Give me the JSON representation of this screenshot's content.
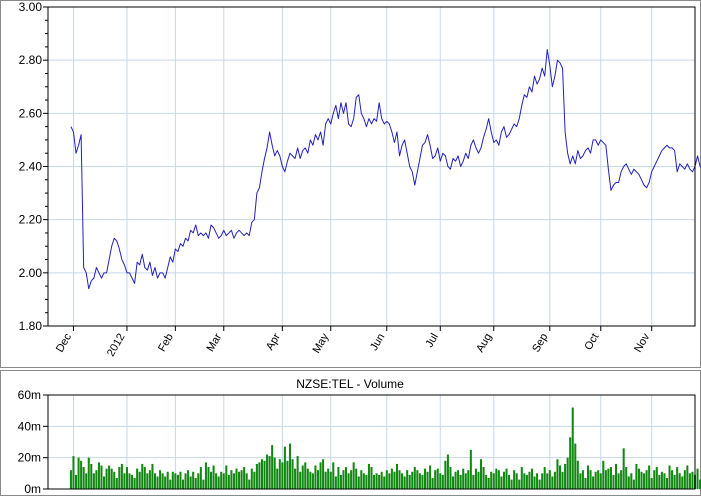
{
  "chart_data": [
    {
      "type": "line",
      "title": "",
      "xlabel": "",
      "ylabel": "",
      "ylim": [
        1.8,
        3.0
      ],
      "grid": true,
      "yticks": [
        "3.00",
        "2.80",
        "2.60",
        "2.40",
        "2.20",
        "2.00",
        "1.80"
      ],
      "ytick_values": [
        3.0,
        2.8,
        2.6,
        2.4,
        2.2,
        2.0,
        1.8
      ],
      "xtick_labels": [
        "Dec",
        "2012",
        "Feb",
        "Mar",
        "Apr",
        "May",
        "Jun",
        "Jul",
        "Aug",
        "Sep",
        "Oct",
        "Nov"
      ],
      "xtick_positions": [
        1,
        22,
        41,
        60,
        83,
        102,
        124,
        145,
        166,
        188,
        208,
        228
      ],
      "x_range": [
        -9,
        245
      ],
      "series": [
        {
          "color": "#2222bb",
          "values": [
            2.55,
            2.53,
            2.45,
            2.48,
            2.52,
            2.02,
            2.0,
            1.94,
            1.97,
            1.98,
            2.02,
            2.0,
            1.98,
            2.0,
            2.0,
            2.05,
            2.1,
            2.13,
            2.12,
            2.09,
            2.05,
            2.03,
            2.0,
            2.0,
            1.98,
            1.96,
            2.04,
            2.03,
            2.07,
            2.02,
            2.01,
            2.04,
            1.99,
            2.02,
            1.98,
            2.0,
            2.0,
            1.98,
            2.02,
            2.06,
            2.04,
            2.09,
            2.08,
            2.11,
            2.1,
            2.13,
            2.12,
            2.16,
            2.15,
            2.18,
            2.14,
            2.15,
            2.14,
            2.15,
            2.13,
            2.18,
            2.17,
            2.15,
            2.13,
            2.14,
            2.16,
            2.14,
            2.15,
            2.16,
            2.13,
            2.15,
            2.16,
            2.15,
            2.14,
            2.15,
            2.14,
            2.19,
            2.2,
            2.3,
            2.32,
            2.38,
            2.43,
            2.47,
            2.53,
            2.48,
            2.44,
            2.46,
            2.44,
            2.4,
            2.38,
            2.42,
            2.45,
            2.44,
            2.43,
            2.47,
            2.43,
            2.46,
            2.47,
            2.45,
            2.5,
            2.48,
            2.52,
            2.5,
            2.53,
            2.48,
            2.56,
            2.58,
            2.56,
            2.6,
            2.63,
            2.58,
            2.64,
            2.6,
            2.64,
            2.56,
            2.55,
            2.58,
            2.66,
            2.67,
            2.6,
            2.58,
            2.55,
            2.58,
            2.56,
            2.58,
            2.57,
            2.64,
            2.58,
            2.56,
            2.57,
            2.56,
            2.53,
            2.49,
            2.53,
            2.44,
            2.48,
            2.5,
            2.45,
            2.4,
            2.38,
            2.33,
            2.38,
            2.43,
            2.48,
            2.49,
            2.52,
            2.48,
            2.43,
            2.44,
            2.47,
            2.42,
            2.45,
            2.44,
            2.4,
            2.39,
            2.43,
            2.42,
            2.44,
            2.4,
            2.42,
            2.45,
            2.43,
            2.48,
            2.5,
            2.47,
            2.45,
            2.47,
            2.51,
            2.54,
            2.58,
            2.53,
            2.49,
            2.5,
            2.48,
            2.53,
            2.55,
            2.51,
            2.52,
            2.54,
            2.56,
            2.55,
            2.58,
            2.63,
            2.67,
            2.66,
            2.7,
            2.68,
            2.74,
            2.71,
            2.73,
            2.77,
            2.74,
            2.84,
            2.78,
            2.7,
            2.74,
            2.8,
            2.79,
            2.77,
            2.53,
            2.45,
            2.41,
            2.44,
            2.41,
            2.46,
            2.43,
            2.44,
            2.46,
            2.47,
            2.45,
            2.5,
            2.5,
            2.48,
            2.5,
            2.49,
            2.48,
            2.39,
            2.31,
            2.33,
            2.34,
            2.34,
            2.38,
            2.4,
            2.41,
            2.39,
            2.37,
            2.39,
            2.38,
            2.37,
            2.35,
            2.33,
            2.32,
            2.34,
            2.38,
            2.4,
            2.42,
            2.44,
            2.46,
            2.47,
            2.48,
            2.47,
            2.47,
            2.46,
            2.38,
            2.41,
            2.4,
            2.39,
            2.41,
            2.39,
            2.38,
            2.4,
            2.44,
            2.4,
            2.39,
            2.38,
            2.39
          ]
        }
      ]
    },
    {
      "type": "bar",
      "title": "NZSE:TEL - Volume",
      "xlabel": "",
      "ylabel": "",
      "ylim": [
        0,
        60
      ],
      "grid": true,
      "yticks": [
        "60m",
        "40m",
        "20m",
        "0m"
      ],
      "ytick_values": [
        60,
        40,
        20,
        0
      ],
      "x_range": [
        -9,
        245
      ],
      "series": [
        {
          "color": "#118811",
          "values": [
            12,
            21,
            9,
            20,
            18,
            14,
            10,
            20,
            16,
            10,
            12,
            17,
            15,
            8,
            13,
            15,
            13,
            11,
            7,
            14,
            16,
            10,
            14,
            10,
            9,
            7,
            13,
            11,
            16,
            14,
            10,
            12,
            16,
            10,
            8,
            12,
            10,
            8,
            11,
            6,
            11,
            10,
            9,
            11,
            6,
            10,
            12,
            8,
            11,
            7,
            10,
            14,
            6,
            17,
            14,
            11,
            15,
            10,
            8,
            11,
            10,
            15,
            9,
            12,
            10,
            13,
            11,
            12,
            14,
            10,
            6,
            13,
            11,
            16,
            17,
            19,
            18,
            22,
            21,
            28,
            20,
            13,
            19,
            17,
            27,
            18,
            29,
            19,
            13,
            21,
            11,
            15,
            17,
            13,
            11,
            10,
            15,
            12,
            17,
            19,
            11,
            13,
            11,
            17,
            8,
            14,
            9,
            12,
            14,
            10,
            12,
            17,
            13,
            8,
            12,
            10,
            9,
            16,
            14,
            9,
            10,
            9,
            11,
            8,
            12,
            10,
            13,
            11,
            16,
            12,
            10,
            8,
            12,
            9,
            11,
            14,
            12,
            10,
            9,
            13,
            11,
            15,
            7,
            12,
            13,
            10,
            9,
            18,
            22,
            14,
            8,
            11,
            12,
            9,
            13,
            10,
            12,
            25,
            9,
            13,
            11,
            19,
            14,
            9,
            7,
            11,
            10,
            13,
            12,
            8,
            11,
            13,
            9,
            6,
            12,
            10,
            6,
            14,
            10,
            9,
            11,
            13,
            8,
            10,
            6,
            10,
            14,
            10,
            12,
            8,
            11,
            19,
            15,
            11,
            16,
            20,
            33,
            52,
            29,
            18,
            10,
            12,
            7,
            15,
            12,
            8,
            11,
            12,
            10,
            18,
            12,
            13,
            14,
            9,
            16,
            10,
            12,
            26,
            14,
            8,
            10,
            6,
            16,
            13,
            11,
            10,
            12,
            15,
            7,
            12,
            14,
            9,
            11,
            10,
            7,
            15,
            12,
            9,
            14,
            10,
            8,
            12,
            15,
            10,
            11,
            9,
            13,
            6,
            11,
            9,
            7
          ]
        }
      ]
    }
  ]
}
